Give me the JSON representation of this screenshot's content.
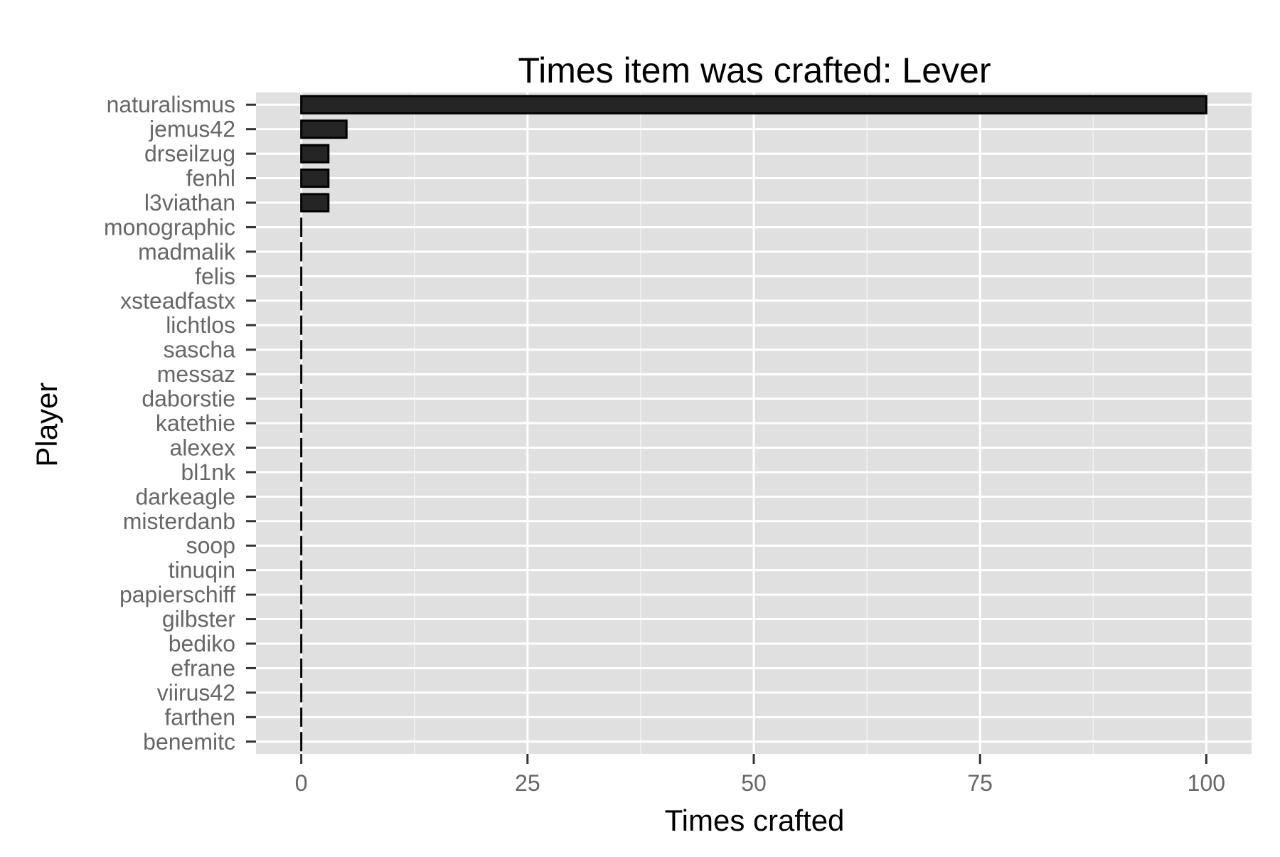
{
  "chart_data": {
    "type": "bar",
    "orientation": "horizontal",
    "title": "Times item was crafted: Lever",
    "xlabel": "Times crafted",
    "ylabel": "Player",
    "xlim": [
      -5,
      105
    ],
    "x_ticks": [
      0,
      25,
      50,
      75,
      100
    ],
    "x_tick_labels": [
      "0",
      "25",
      "50",
      "75",
      "100"
    ],
    "grid": true,
    "legend": "none",
    "categories": [
      "naturalismus",
      "jemus42",
      "drseilzug",
      "fenhl",
      "l3viathan",
      "monographic",
      "madmalik",
      "felis",
      "xsteadfastx",
      "lichtlos",
      "sascha",
      "messaz",
      "daborstie",
      "katethie",
      "alexex",
      "bl1nk",
      "darkeagle",
      "misterdanb",
      "soop",
      "tinuqin",
      "papierschiff",
      "gilbster",
      "bediko",
      "efrane",
      "viirus42",
      "farthen",
      "benemitc"
    ],
    "values": [
      100,
      5,
      3,
      3,
      3,
      0,
      0,
      0,
      0,
      0,
      0,
      0,
      0,
      0,
      0,
      0,
      0,
      0,
      0,
      0,
      0,
      0,
      0,
      0,
      0,
      0,
      0
    ],
    "colors": {
      "panel_background": "#e0e0e0",
      "grid_major": "#ffffff",
      "grid_minor": "#f2f2f2",
      "bar_fill": "#252525",
      "bar_outline": "#000000",
      "tick_label": "#666666",
      "tick_mark": "#333333"
    }
  }
}
